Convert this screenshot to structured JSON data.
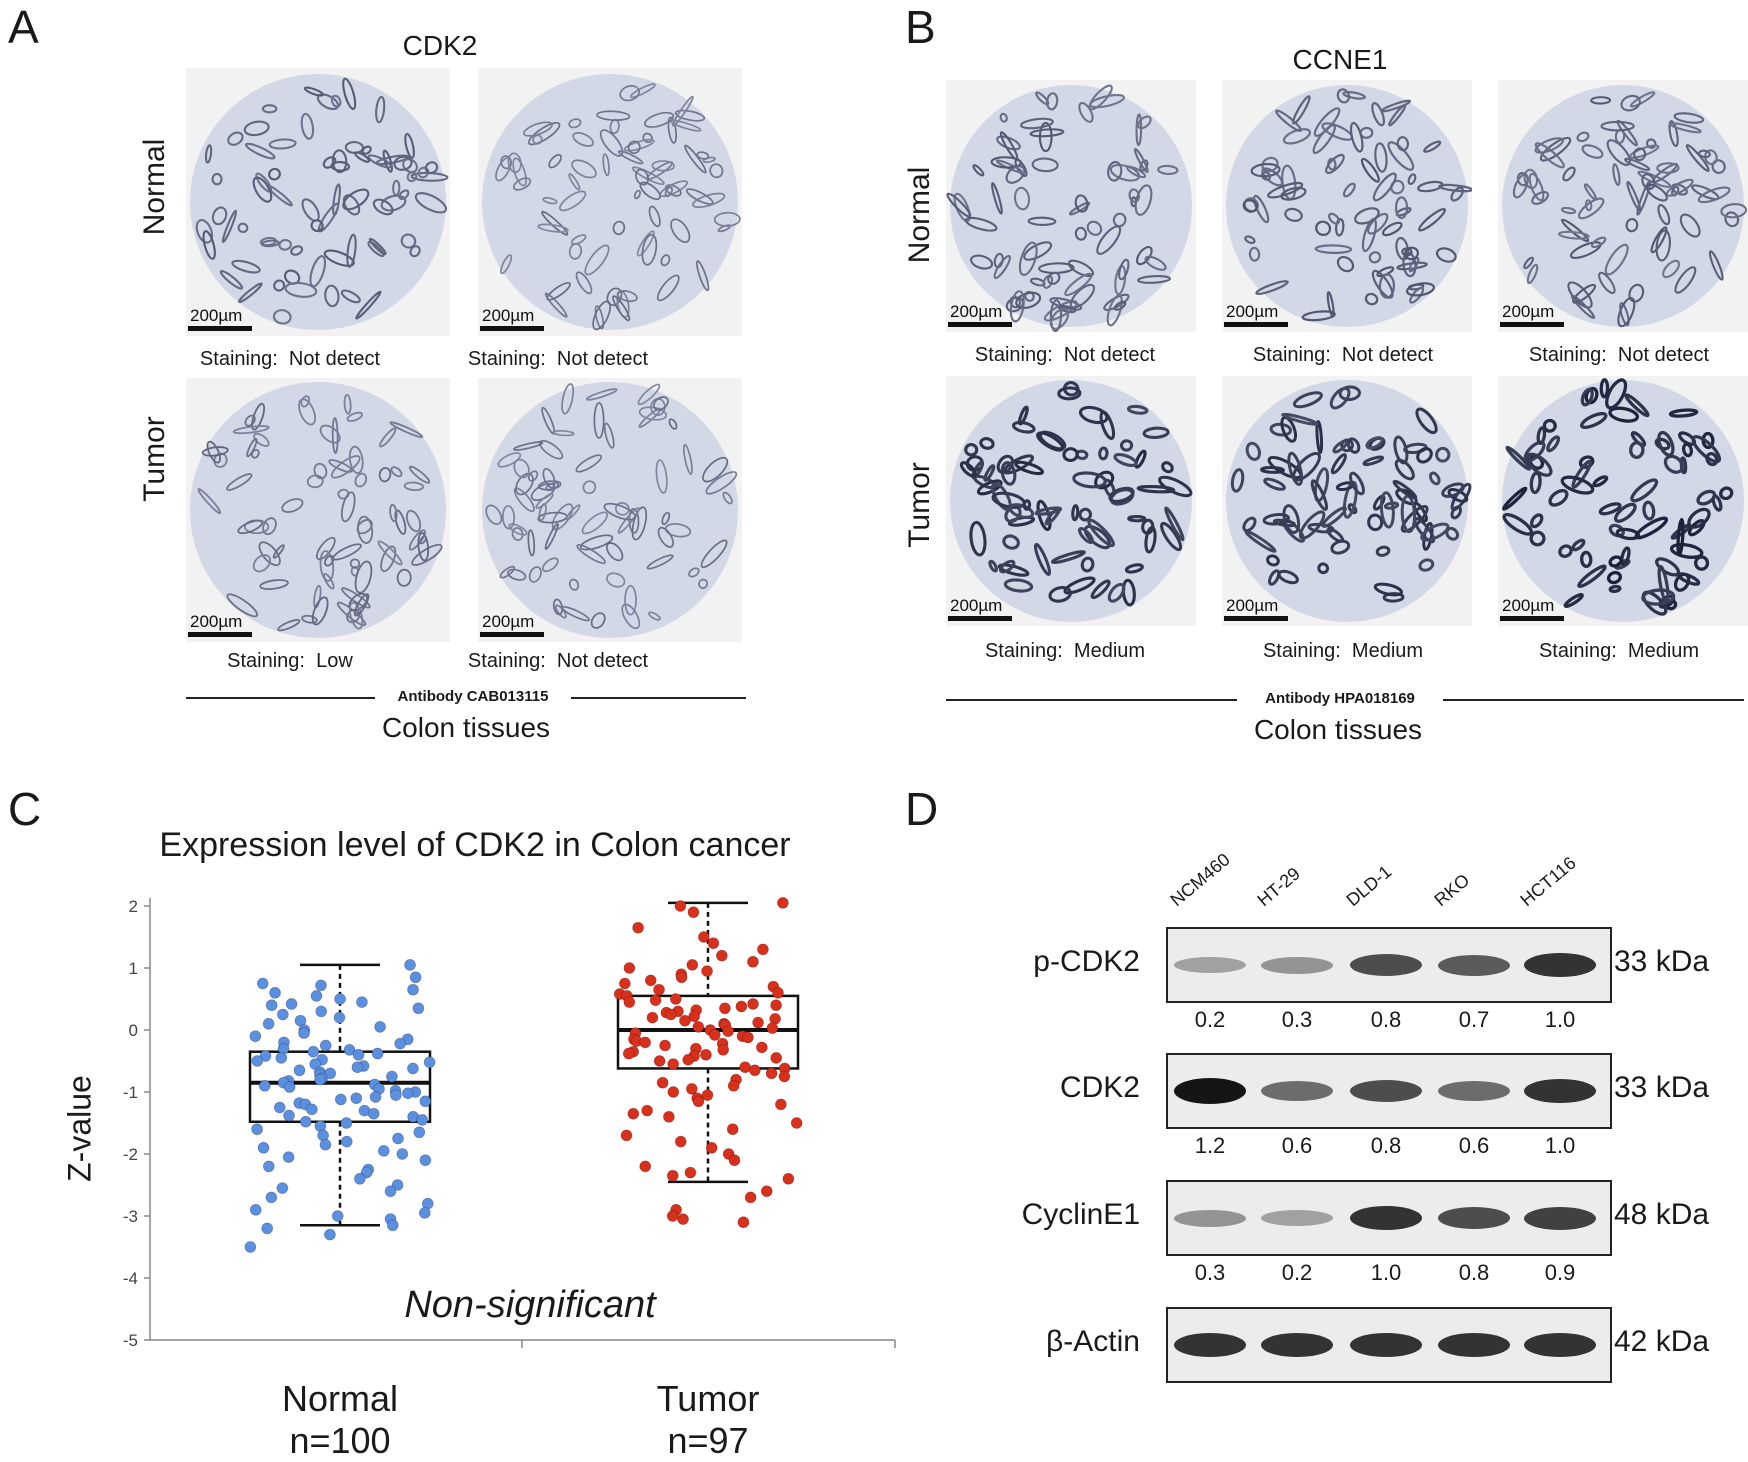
{
  "panel_a": {
    "letter": "A",
    "title": "CDK2",
    "row_labels": [
      "Normal",
      "Tumor"
    ],
    "scale_label": "200µm",
    "staining": [
      {
        "prefix": "Staining:",
        "value": "Not detect"
      },
      {
        "prefix": "Staining:",
        "value": "Not detect"
      },
      {
        "prefix": "Staining:",
        "value": "Low"
      },
      {
        "prefix": "Staining:",
        "value": "Not detect"
      }
    ],
    "antibody": "Antibody CAB013115",
    "subtitle": "Colon tissues"
  },
  "panel_b": {
    "letter": "B",
    "title": "CCNE1",
    "row_labels": [
      "Normal",
      "Tumor"
    ],
    "scale_label": "200µm",
    "staining": [
      {
        "prefix": "Staining:",
        "value": "Not detect"
      },
      {
        "prefix": "Staining:",
        "value": "Not detect"
      },
      {
        "prefix": "Staining:",
        "value": "Not detect"
      },
      {
        "prefix": "Staining:",
        "value": "Medium"
      },
      {
        "prefix": "Staining:",
        "value": "Medium"
      },
      {
        "prefix": "Staining:",
        "value": "Medium"
      }
    ],
    "antibody": "Antibody HPA018169",
    "subtitle": "Colon tissues"
  },
  "panel_c": {
    "letter": "C",
    "annotation": "Non-significant",
    "group_n": [
      "n=100",
      "n=97"
    ]
  },
  "panel_d": {
    "letter": "D",
    "lanes": [
      "NCM460",
      "HT-29",
      "DLD-1",
      "RKO",
      "HCT116"
    ],
    "blots": [
      {
        "name": "p-CDK2",
        "kda": "33 kDa",
        "quant": [
          "0.2",
          "0.3",
          "0.8",
          "0.7",
          "1.0"
        ],
        "intensity": [
          0.2,
          0.3,
          0.8,
          0.7,
          1.0
        ]
      },
      {
        "name": "CDK2",
        "kda": "33 kDa",
        "quant": [
          "1.2",
          "0.6",
          "0.8",
          "0.6",
          "1.0"
        ],
        "intensity": [
          1.2,
          0.6,
          0.8,
          0.6,
          1.0
        ]
      },
      {
        "name": "CyclinE1",
        "kda": "48 kDa",
        "quant": [
          "0.3",
          "0.2",
          "1.0",
          "0.8",
          "0.9"
        ],
        "intensity": [
          0.3,
          0.2,
          1.0,
          0.8,
          0.9
        ]
      },
      {
        "name": "β-Actin",
        "kda": "42 kDa",
        "quant": [],
        "intensity": [
          1.0,
          1.0,
          1.0,
          1.0,
          1.0
        ]
      }
    ]
  },
  "chart_data": {
    "type": "scatter",
    "title": "Expression level of CDK2 in Colon cancer",
    "xlabel": "",
    "ylabel": "Z-value",
    "categories": [
      "Normal",
      "Tumor"
    ],
    "ylim": [
      -5,
      2
    ],
    "yticks": [
      "2",
      "1",
      "0",
      "-1",
      "-2",
      "-3",
      "-4",
      "-5"
    ],
    "boxes": [
      {
        "category": "Normal",
        "whisker_low": -3.15,
        "q1": -1.48,
        "median": -0.85,
        "q3": -0.35,
        "whisker_high": 1.05,
        "color": "#5b8fe0"
      },
      {
        "category": "Tumor",
        "whisker_low": -2.45,
        "q1": -0.62,
        "median": 0.0,
        "q3": 0.55,
        "whisker_high": 2.05,
        "color": "#d9301c"
      }
    ],
    "series": [
      {
        "category": "Normal",
        "color": "#5b8fe0",
        "values": [
          1.05,
          0.85,
          0.75,
          0.72,
          0.65,
          0.6,
          0.55,
          0.5,
          0.45,
          0.42,
          0.4,
          0.35,
          0.3,
          0.25,
          0.2,
          0.15,
          0.1,
          0.05,
          0.0,
          -0.05,
          -0.1,
          -0.15,
          -0.2,
          -0.22,
          -0.25,
          -0.3,
          -0.32,
          -0.35,
          -0.38,
          -0.4,
          -0.42,
          -0.45,
          -0.48,
          -0.5,
          -0.52,
          -0.55,
          -0.58,
          -0.6,
          -0.62,
          -0.65,
          -0.68,
          -0.7,
          -0.72,
          -0.75,
          -0.78,
          -0.8,
          -0.82,
          -0.85,
          -0.88,
          -0.9,
          -0.92,
          -0.95,
          -0.98,
          -1.0,
          -1.02,
          -1.05,
          -1.08,
          -1.1,
          -1.12,
          -1.15,
          -1.18,
          -1.2,
          -1.25,
          -1.28,
          -1.3,
          -1.35,
          -1.38,
          -1.4,
          -1.45,
          -1.48,
          -1.5,
          -1.55,
          -1.6,
          -1.65,
          -1.7,
          -1.75,
          -1.8,
          -1.85,
          -1.9,
          -1.95,
          -2.0,
          -2.05,
          -2.1,
          -2.2,
          -2.25,
          -2.3,
          -2.4,
          -2.5,
          -2.55,
          -2.6,
          -2.7,
          -2.8,
          -2.9,
          -2.95,
          -3.0,
          -3.05,
          -3.15,
          -3.2,
          -3.3,
          -3.5
        ]
      },
      {
        "category": "Tumor",
        "color": "#d9301c",
        "values": [
          2.05,
          2.0,
          1.9,
          1.65,
          1.5,
          1.4,
          1.3,
          1.2,
          1.1,
          1.05,
          1.0,
          0.95,
          0.9,
          0.85,
          0.8,
          0.75,
          0.7,
          0.65,
          0.6,
          0.58,
          0.55,
          0.5,
          0.48,
          0.45,
          0.42,
          0.4,
          0.38,
          0.35,
          0.32,
          0.3,
          0.28,
          0.25,
          0.22,
          0.2,
          0.18,
          0.15,
          0.12,
          0.1,
          0.08,
          0.05,
          0.03,
          0.0,
          -0.02,
          -0.05,
          -0.08,
          -0.1,
          -0.12,
          -0.15,
          -0.18,
          -0.2,
          -0.22,
          -0.25,
          -0.28,
          -0.3,
          -0.32,
          -0.35,
          -0.38,
          -0.4,
          -0.42,
          -0.45,
          -0.48,
          -0.5,
          -0.55,
          -0.6,
          -0.62,
          -0.65,
          -0.7,
          -0.75,
          -0.8,
          -0.85,
          -0.9,
          -0.95,
          -1.0,
          -1.05,
          -1.1,
          -1.15,
          -1.2,
          -1.3,
          -1.35,
          -1.4,
          -1.5,
          -1.6,
          -1.7,
          -1.8,
          -1.9,
          -2.0,
          -2.1,
          -2.2,
          -2.3,
          -2.35,
          -2.4,
          -2.6,
          -2.7,
          -2.9,
          -3.0,
          -3.05,
          -3.1
        ]
      }
    ]
  }
}
